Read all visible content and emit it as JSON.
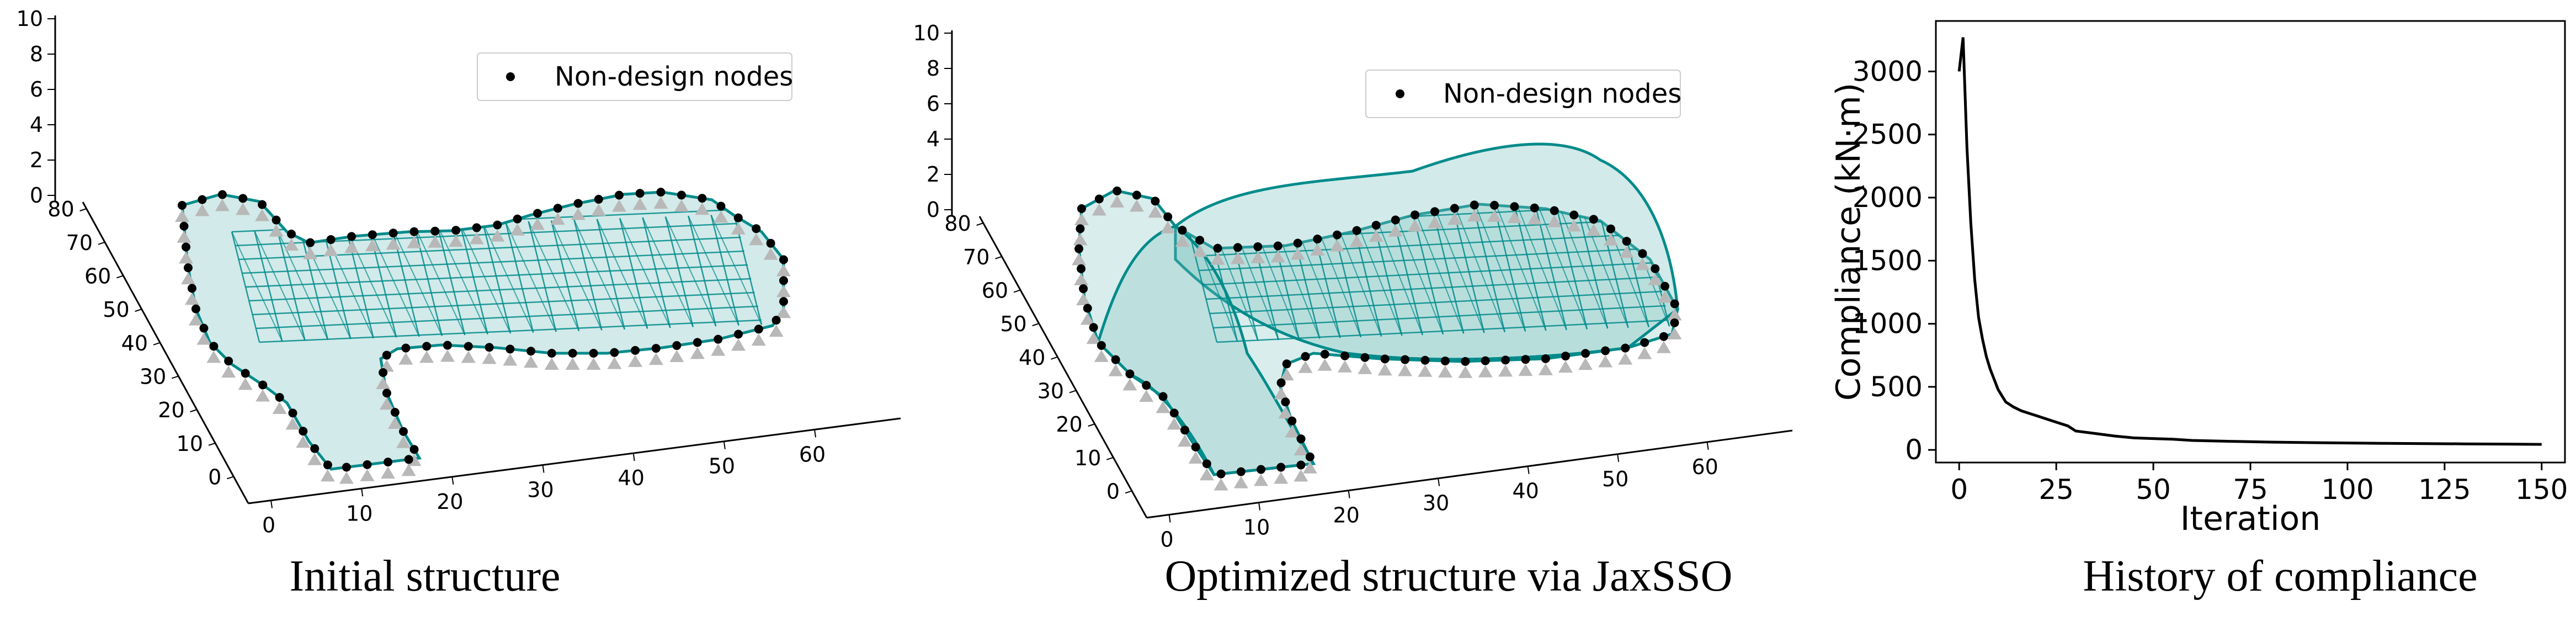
{
  "panels": [
    {
      "caption": "Initial structure",
      "legend": "Non-design nodes",
      "z_ticks": [
        "10",
        "8",
        "6",
        "4",
        "2",
        "0"
      ],
      "y_ticks": [
        "80",
        "70",
        "60",
        "50",
        "40",
        "30",
        "20",
        "10",
        "0"
      ],
      "x_ticks": [
        "0",
        "10",
        "20",
        "30",
        "40",
        "50",
        "60"
      ]
    },
    {
      "caption": "Optimized structure via JaxSSO",
      "legend": "Non-design nodes",
      "z_ticks": [
        "10",
        "8",
        "6",
        "4",
        "2",
        "0"
      ],
      "y_ticks": [
        "80",
        "70",
        "60",
        "50",
        "40",
        "30",
        "20",
        "10",
        "0"
      ],
      "x_ticks": [
        "0",
        "10",
        "20",
        "30",
        "40",
        "50",
        "60"
      ]
    }
  ],
  "colors": {
    "mesh": "#008b8b",
    "nodes": "#000000",
    "supports": "#b8b8b8",
    "line": "#000000"
  },
  "chart_data": {
    "type": "line",
    "caption": "History of compliance",
    "xlabel": "Iteration",
    "ylabel": "Compliance (kN·m)",
    "xlim": [
      -6,
      156
    ],
    "ylim": [
      -100,
      3400
    ],
    "xticks": [
      0,
      25,
      50,
      75,
      100,
      125,
      150
    ],
    "yticks": [
      0,
      500,
      1000,
      1500,
      2000,
      2500,
      3000
    ],
    "x": [
      0,
      1,
      2,
      3,
      4,
      5,
      6,
      7,
      8,
      9,
      10,
      11,
      12,
      14,
      16,
      18,
      20,
      22,
      25,
      28,
      30,
      35,
      40,
      45,
      50,
      55,
      60,
      70,
      80,
      90,
      100,
      110,
      120,
      130,
      140,
      150
    ],
    "y": [
      3000,
      3270,
      2400,
      1800,
      1350,
      1050,
      880,
      740,
      640,
      560,
      480,
      430,
      380,
      340,
      310,
      290,
      270,
      250,
      220,
      190,
      150,
      130,
      110,
      95,
      90,
      85,
      75,
      68,
      62,
      58,
      55,
      52,
      50,
      48,
      46,
      44
    ]
  }
}
